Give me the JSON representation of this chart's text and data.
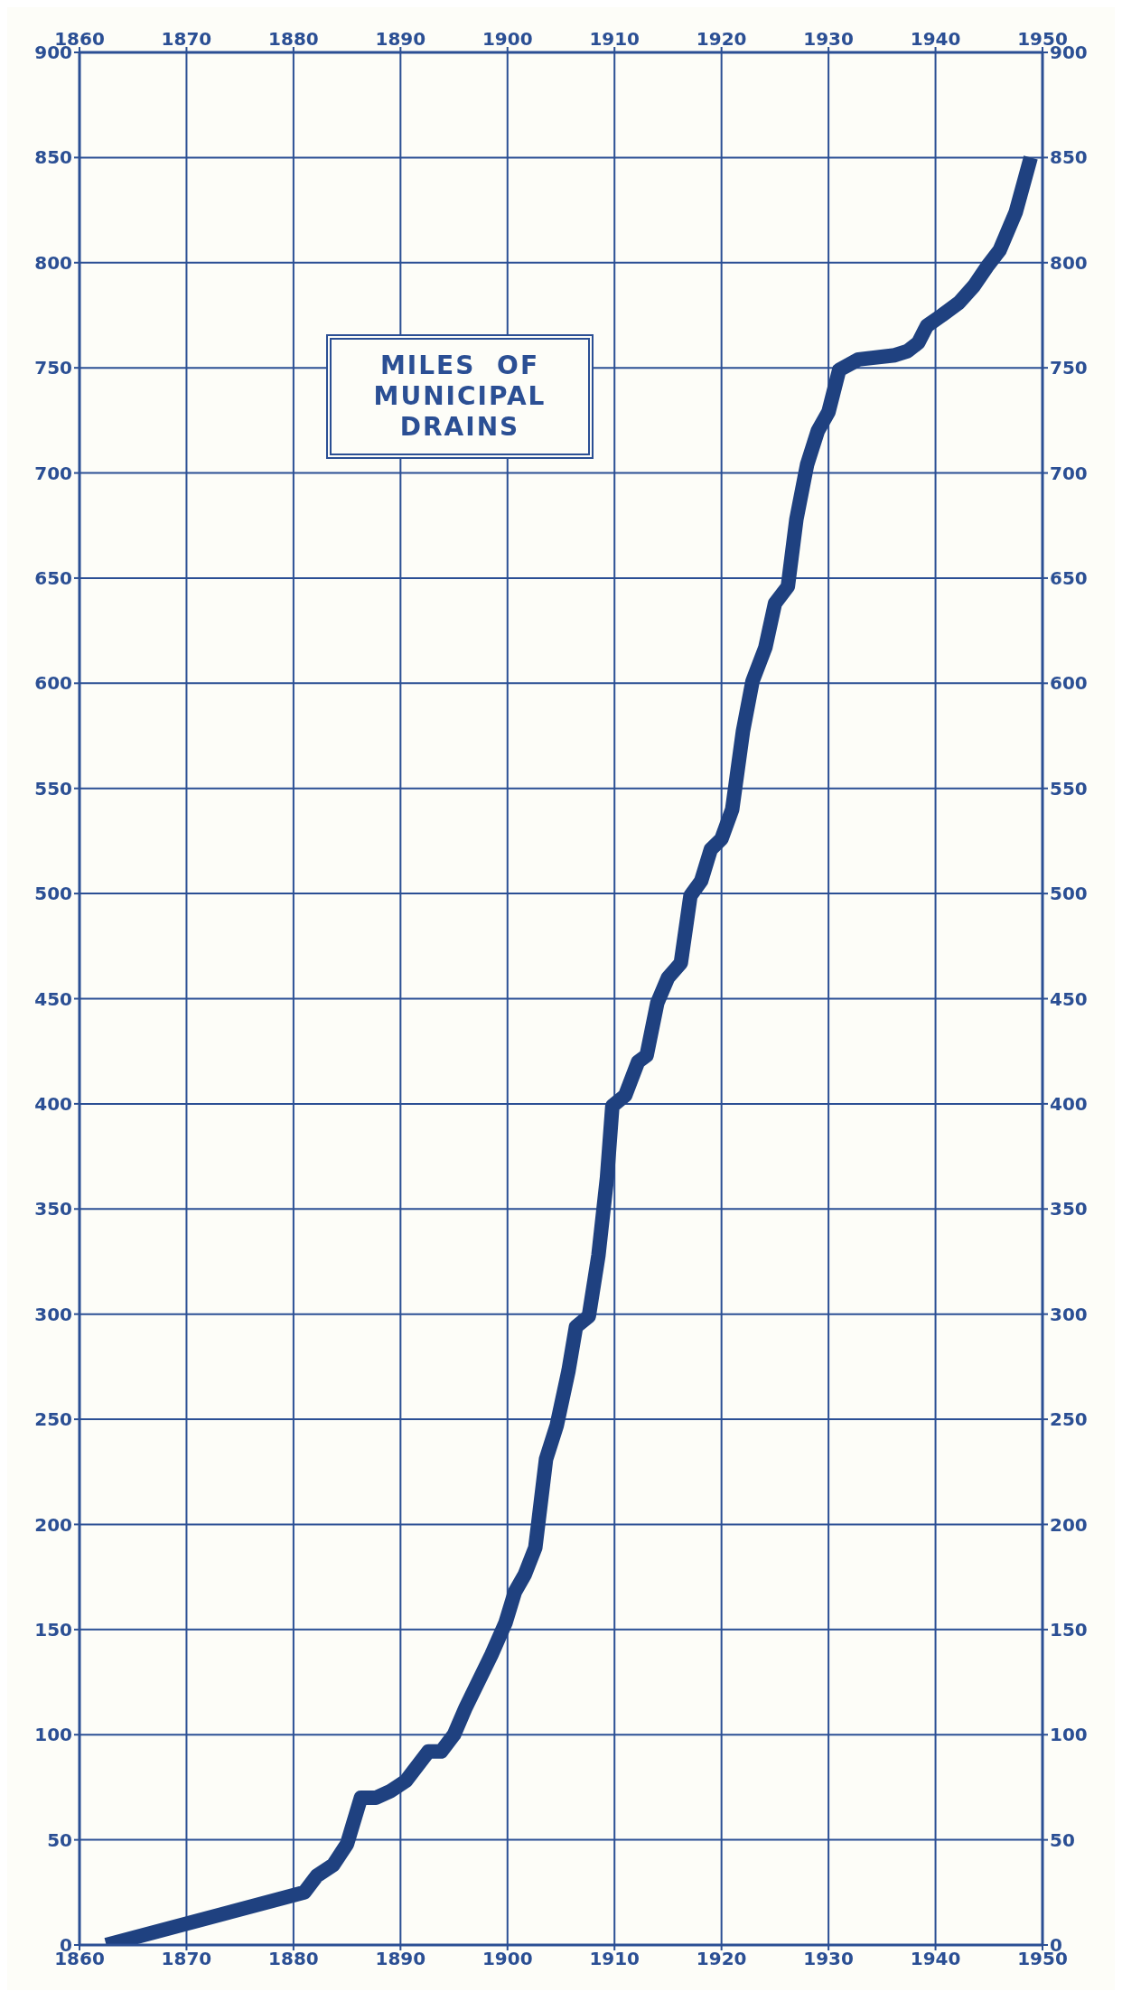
{
  "chart_data": {
    "type": "line",
    "title": "MILES OF MUNICIPAL DRAINS",
    "x": [
      1862.5,
      1881,
      1882.2,
      1883.7,
      1885,
      1886.3,
      1887.7,
      1889,
      1890.5,
      1892.6,
      1893.8,
      1895,
      1896.1,
      1898.5,
      1899.8,
      1900.7,
      1901.6,
      1902.6,
      1903.6,
      1904.6,
      1905.7,
      1906.4,
      1907.6,
      1908.5,
      1909.3,
      1909.8,
      1911,
      1912.2,
      1913,
      1914,
      1915,
      1916.2,
      1917.1,
      1918.1,
      1919,
      1920,
      1921,
      1922,
      1922.9,
      1924.1,
      1925,
      1926.2,
      1927,
      1928,
      1929,
      1930,
      1931,
      1932.8,
      1936.2,
      1937.4,
      1938.4,
      1939.2,
      1940.6,
      1942.2,
      1943.6,
      1944.8,
      1946,
      1947.5,
      1948.9
    ],
    "series": [
      {
        "color": "#1f4180",
        "values": [
          0,
          25,
          33,
          38,
          48,
          70,
          70,
          73,
          78,
          92,
          92,
          100,
          113,
          138,
          153,
          168,
          176,
          189,
          231,
          247,
          273,
          294,
          299,
          328,
          365,
          399,
          404,
          420,
          423,
          448,
          460,
          467,
          499,
          506,
          521,
          526,
          540,
          577,
          601,
          617,
          638,
          646,
          678,
          704,
          720,
          729,
          749,
          754,
          756,
          758,
          762,
          770,
          775,
          781,
          789,
          798,
          806,
          824,
          850
        ]
      }
    ],
    "xlim": [
      1860,
      1950
    ],
    "xticks": [
      1860,
      1870,
      1880,
      1890,
      1900,
      1910,
      1920,
      1930,
      1940,
      1950
    ],
    "x2lim": [
      1860,
      1950
    ],
    "x2ticks": [
      1860,
      1870,
      1880,
      1890,
      1900,
      1910,
      1920,
      1930,
      1940,
      1950
    ],
    "ylim": [
      0,
      900
    ],
    "yticks": [
      0,
      50,
      100,
      150,
      200,
      250,
      300,
      350,
      400,
      450,
      500,
      550,
      600,
      650,
      700,
      750,
      800,
      850,
      900
    ],
    "y2lim": [
      0,
      900
    ],
    "y2ticks": [
      0,
      50,
      100,
      150,
      200,
      250,
      300,
      350,
      400,
      450,
      500,
      550,
      600,
      650,
      700,
      750,
      800,
      850,
      900
    ],
    "grid": true,
    "legend": false,
    "marker": "none",
    "line_style": "solid"
  }
}
